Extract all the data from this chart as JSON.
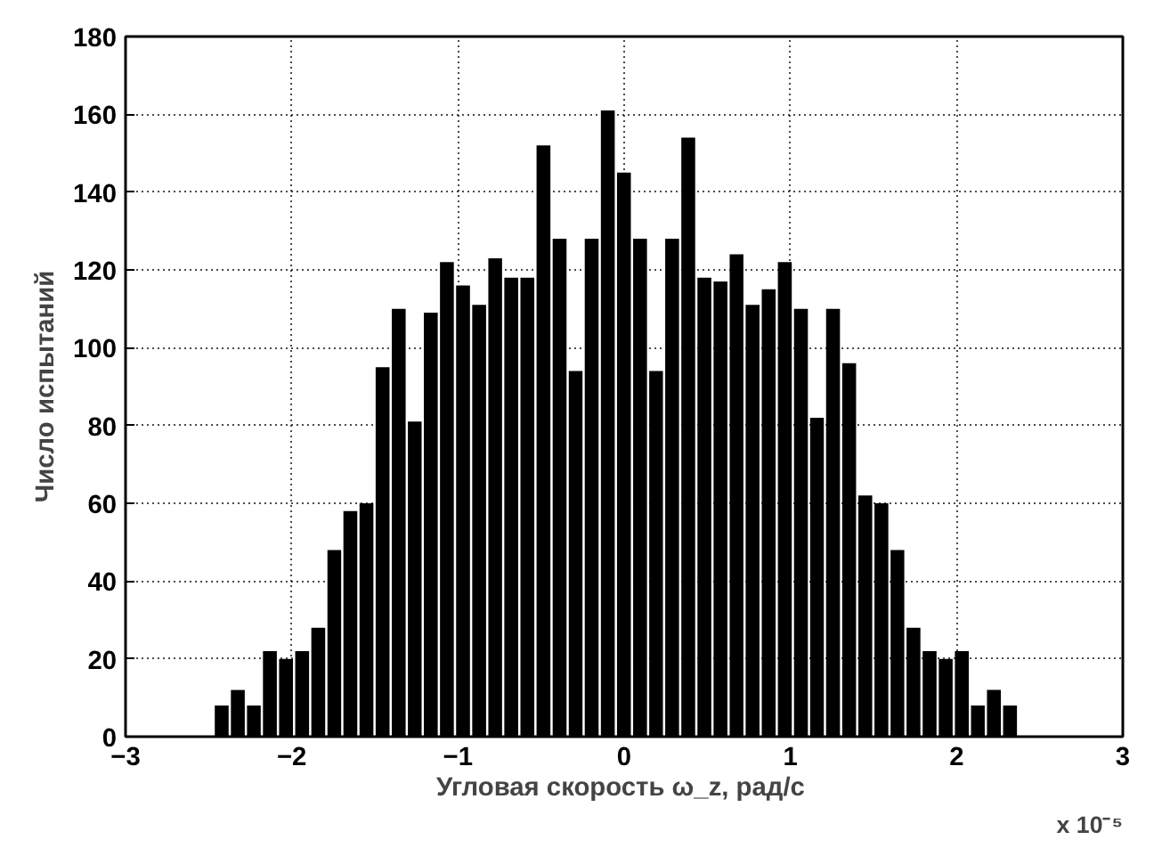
{
  "chart_data": {
    "type": "histogram",
    "xlabel": "Угловая скорость  ω_z, рад/с",
    "ylabel": "Число испытаний",
    "bins": [
      -2.47,
      -2.373,
      -2.276,
      -2.18,
      -2.083,
      -1.986,
      -1.889,
      -1.792,
      -1.696,
      -1.599,
      -1.502,
      -1.405,
      -1.308,
      -1.212,
      -1.115,
      -1.018,
      -0.921,
      -0.824,
      -0.728,
      -0.631,
      -0.534,
      -0.437,
      -0.34,
      -0.244,
      -0.147,
      -0.05,
      0.047,
      0.144,
      0.24,
      0.337,
      0.434,
      0.531,
      0.628,
      0.724,
      0.821,
      0.918,
      1.015,
      1.112,
      1.208,
      1.305,
      1.402,
      1.499,
      1.596,
      1.692,
      1.789,
      1.886,
      1.983,
      2.08,
      2.176,
      2.273,
      2.37
    ],
    "values": [
      8,
      12,
      8,
      22,
      20,
      22,
      28,
      48,
      58,
      60,
      95,
      110,
      81,
      109,
      122,
      116,
      111,
      123,
      118,
      118,
      152,
      128,
      94,
      128,
      161,
      145,
      128,
      94,
      128,
      154,
      118,
      117,
      124,
      111,
      115,
      122,
      110,
      82,
      110,
      96,
      62,
      60,
      48,
      28,
      22,
      20,
      22,
      8,
      12,
      8
    ],
    "color": "#000000",
    "xlim": [
      -3,
      3
    ],
    "xticks": [
      -3,
      -2,
      -1,
      0,
      1,
      2,
      3
    ],
    "ylim": [
      0,
      180
    ],
    "yticks": [
      0,
      20,
      40,
      60,
      80,
      100,
      120,
      140,
      160,
      180
    ],
    "grid": true,
    "annotations": [
      "x 10⁻⁵"
    ]
  }
}
